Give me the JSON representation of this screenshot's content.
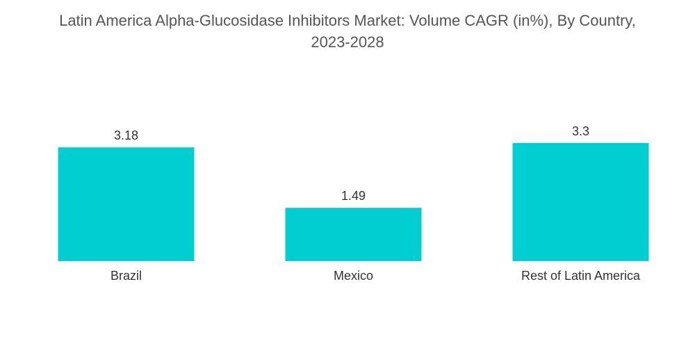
{
  "title_line1": "Latin America Alpha-Glucosidase Inhibitors Market: Volume CAGR (in%), By Country,",
  "title_line2": "2023-2028",
  "chart_data": {
    "type": "bar",
    "title": "Latin America Alpha-Glucosidase Inhibitors Market: Volume CAGR (in%), By Country, 2023-2028",
    "categories": [
      "Brazil",
      "Mexico",
      "Rest of Latin America"
    ],
    "values": [
      3.18,
      1.49,
      3.3
    ],
    "value_labels": [
      "3.18",
      "1.49",
      "3.3"
    ],
    "xlabel": "",
    "ylabel": "",
    "ylim": [
      0,
      3.3
    ],
    "grid": false,
    "legend": "none",
    "bar_color": "#00CED1"
  }
}
